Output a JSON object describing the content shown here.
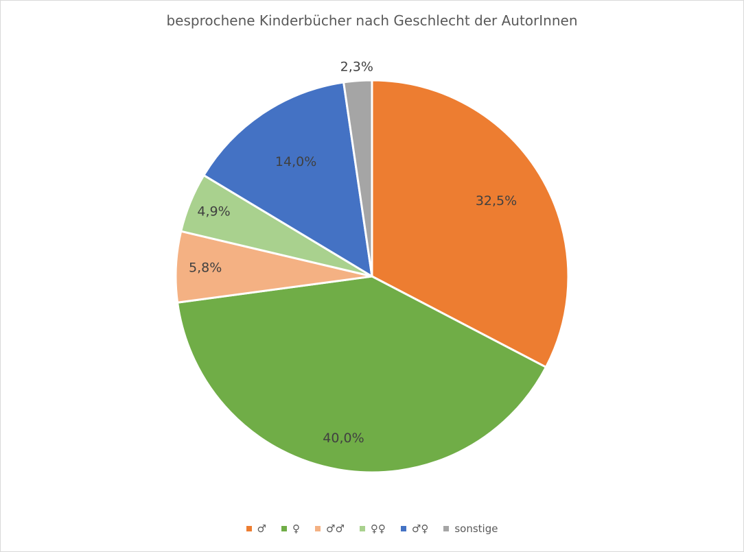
{
  "chart_data": {
    "type": "pie",
    "title": "besprochene Kinderbücher nach Geschlecht der AutorInnen",
    "slices": [
      {
        "label": "♂",
        "value": 32.5,
        "display": "32,5%",
        "color": "#ED7D31"
      },
      {
        "label": "♀",
        "value": 40.0,
        "display": "40,0%",
        "color": "#70AD47"
      },
      {
        "label": "♂♂",
        "value": 5.8,
        "display": "5,8%",
        "color": "#F4B183"
      },
      {
        "label": "♀♀",
        "value": 4.9,
        "display": "4,9%",
        "color": "#A9D18E"
      },
      {
        "label": "♂♀",
        "value": 14.0,
        "display": "14,0%",
        "color": "#4472C4"
      },
      {
        "label": "sonstige",
        "value": 2.3,
        "display": "2,3%",
        "color": "#A5A5A5"
      }
    ],
    "legend_position": "bottom",
    "start_angle": "12 o'clock",
    "direction": "clockwise"
  }
}
